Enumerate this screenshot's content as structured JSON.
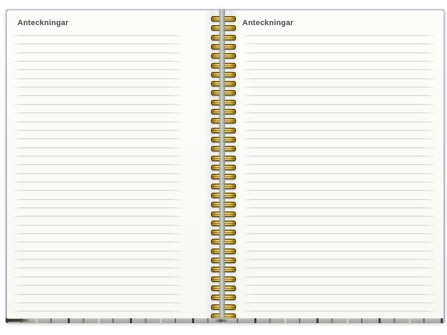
{
  "notebook": {
    "pages": {
      "left": {
        "heading": "Anteckningar",
        "ruled_line_count": 33
      },
      "right": {
        "heading": "Anteckningar",
        "ruled_line_count": 33
      }
    },
    "binding": {
      "style": "wire-o-spiral",
      "ring_count": 33
    },
    "colors": {
      "page_background": "#fafaf8",
      "ruled_line": "#dcdad6",
      "heading_text": "#4a4a4e",
      "cover_border": "#b7b7c3",
      "spine_rod": "#bdbdbd",
      "ring_gold": "#ebc846",
      "ring_gold_dark": "#6e5408",
      "ring_gold_light": "#fdf4b4",
      "bottom_edge": "#b2b2b0"
    }
  }
}
